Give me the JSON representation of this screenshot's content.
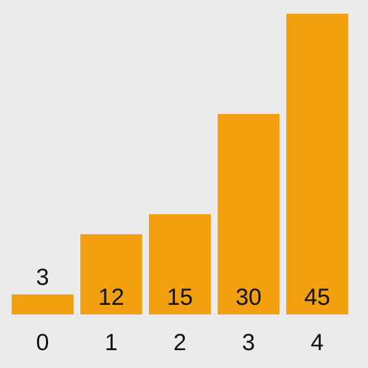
{
  "colors": {
    "background": "#ebebeb",
    "bar": "#f2a00f",
    "text": "#111111"
  },
  "chart_data": {
    "type": "bar",
    "categories": [
      "0",
      "1",
      "2",
      "3",
      "4"
    ],
    "values": [
      3,
      12,
      15,
      30,
      45
    ],
    "data_labels": [
      "3",
      "12",
      "15",
      "30",
      "45"
    ],
    "ylim": [
      0,
      45
    ],
    "grid": false,
    "legend": "none"
  }
}
